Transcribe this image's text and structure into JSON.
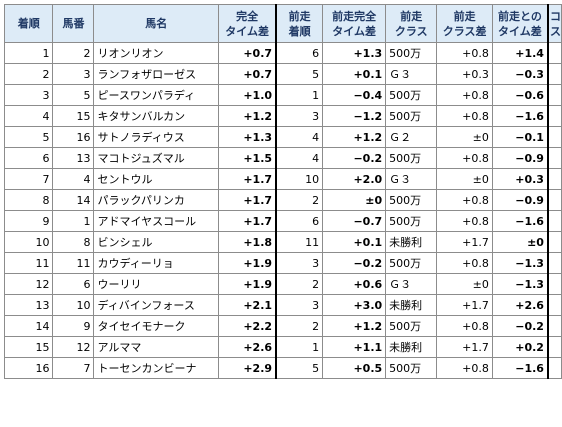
{
  "headers": {
    "rank": "着順",
    "num": "馬番",
    "name": "馬名",
    "full_diff": [
      "完全",
      "タイム差"
    ],
    "prev_rank": [
      "前走",
      "着順"
    ],
    "prev_full_diff": [
      "前走完全",
      "タイム差"
    ],
    "prev_class": [
      "前走",
      "クラス"
    ],
    "prev_class_diff": [
      "前走",
      "クラス差"
    ],
    "prev_diff": [
      "前走との",
      "タイム差"
    ],
    "extra": [
      "コ",
      "ス"
    ]
  },
  "rows": [
    {
      "rank": "1",
      "num": "2",
      "name": "リオンリオン",
      "full": "+0.7",
      "prank": "6",
      "pfull": "+1.3",
      "pclass": "500万",
      "pcdiff": "+0.8",
      "pdiff": "+1.4"
    },
    {
      "rank": "2",
      "num": "3",
      "name": "ランフォザローゼス",
      "full": "+0.7",
      "prank": "5",
      "pfull": "+0.1",
      "pclass": "Ｇ３",
      "pcdiff": "+0.3",
      "pdiff": "−0.3"
    },
    {
      "rank": "3",
      "num": "5",
      "name": "ピースワンパラディ",
      "full": "+1.0",
      "prank": "1",
      "pfull": "−0.4",
      "pclass": "500万",
      "pcdiff": "+0.8",
      "pdiff": "−0.6"
    },
    {
      "rank": "4",
      "num": "15",
      "name": "キタサンバルカン",
      "full": "+1.2",
      "prank": "3",
      "pfull": "−1.2",
      "pclass": "500万",
      "pcdiff": "+0.8",
      "pdiff": "−1.6"
    },
    {
      "rank": "5",
      "num": "16",
      "name": "サトノラディウス",
      "full": "+1.3",
      "prank": "4",
      "pfull": "+1.2",
      "pclass": "Ｇ２",
      "pcdiff": "±0",
      "pdiff": "−0.1"
    },
    {
      "rank": "6",
      "num": "13",
      "name": "マコトジュズマル",
      "full": "+1.5",
      "prank": "4",
      "pfull": "−0.2",
      "pclass": "500万",
      "pcdiff": "+0.8",
      "pdiff": "−0.9"
    },
    {
      "rank": "7",
      "num": "4",
      "name": "セントウル",
      "full": "+1.7",
      "prank": "10",
      "pfull": "+2.0",
      "pclass": "Ｇ３",
      "pcdiff": "±0",
      "pdiff": "+0.3"
    },
    {
      "rank": "8",
      "num": "14",
      "name": "パラックパリンカ",
      "full": "+1.7",
      "prank": "2",
      "pfull": "±0",
      "pclass": "500万",
      "pcdiff": "+0.8",
      "pdiff": "−0.9"
    },
    {
      "rank": "9",
      "num": "1",
      "name": "アドマイヤスコール",
      "full": "+1.7",
      "prank": "6",
      "pfull": "−0.7",
      "pclass": "500万",
      "pcdiff": "+0.8",
      "pdiff": "−1.6"
    },
    {
      "rank": "10",
      "num": "8",
      "name": "ビンシェル",
      "full": "+1.8",
      "prank": "11",
      "pfull": "+0.1",
      "pclass": "未勝利",
      "pcdiff": "+1.7",
      "pdiff": "±0"
    },
    {
      "rank": "11",
      "num": "11",
      "name": "カウディーリョ",
      "full": "+1.9",
      "prank": "3",
      "pfull": "−0.2",
      "pclass": "500万",
      "pcdiff": "+0.8",
      "pdiff": "−1.3"
    },
    {
      "rank": "12",
      "num": "6",
      "name": "ウーリリ",
      "full": "+1.9",
      "prank": "2",
      "pfull": "+0.6",
      "pclass": "Ｇ３",
      "pcdiff": "±0",
      "pdiff": "−1.3"
    },
    {
      "rank": "13",
      "num": "10",
      "name": "ディバインフォース",
      "full": "+2.1",
      "prank": "3",
      "pfull": "+3.0",
      "pclass": "未勝利",
      "pcdiff": "+1.7",
      "pdiff": "+2.6"
    },
    {
      "rank": "14",
      "num": "9",
      "name": "タイセイモナーク",
      "full": "+2.2",
      "prank": "2",
      "pfull": "+1.2",
      "pclass": "500万",
      "pcdiff": "+0.8",
      "pdiff": "−0.2"
    },
    {
      "rank": "15",
      "num": "12",
      "name": "アルママ",
      "full": "+2.6",
      "prank": "1",
      "pfull": "+1.1",
      "pclass": "未勝利",
      "pcdiff": "+1.7",
      "pdiff": "+0.2"
    },
    {
      "rank": "16",
      "num": "7",
      "name": "トーセンカンビーナ",
      "full": "+2.9",
      "prank": "5",
      "pfull": "+0.5",
      "pclass": "500万",
      "pcdiff": "+0.8",
      "pdiff": "−1.6"
    }
  ]
}
